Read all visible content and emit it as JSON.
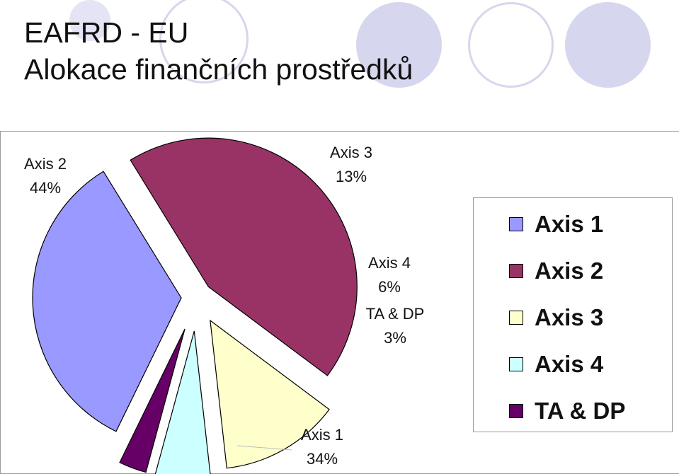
{
  "title": {
    "line1": "EAFRD - EU",
    "line2": "Alokace finančních prostředků"
  },
  "chart_data": {
    "type": "pie",
    "title": "",
    "slices": [
      {
        "name": "Axis 1",
        "value": 34,
        "label": "34%",
        "color": "#9999ff"
      },
      {
        "name": "Axis 2",
        "value": 44,
        "label": "44%",
        "color": "#993366"
      },
      {
        "name": "Axis 3",
        "value": 13,
        "label": "13%",
        "color": "#ffffcc"
      },
      {
        "name": "Axis 4",
        "value": 6,
        "label": "6%",
        "color": "#ccffff"
      },
      {
        "name": "TA & DP",
        "value": 3,
        "label": "3%",
        "color": "#660066"
      }
    ],
    "legend_position": "right",
    "exploded": true
  }
}
